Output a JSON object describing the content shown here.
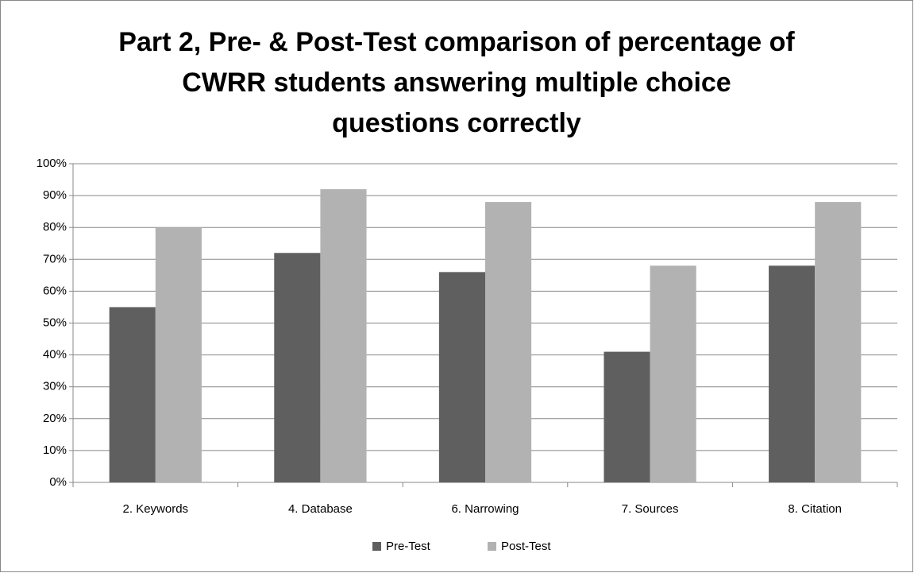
{
  "chart_data": {
    "type": "bar",
    "title": [
      "Part 2, Pre- & Post-Test comparison of percentage of",
      "CWRR students answering multiple choice",
      "questions correctly"
    ],
    "categories": [
      "2. Keywords",
      "4. Database",
      "6. Narrowing",
      "7. Sources",
      "8. Citation"
    ],
    "series": [
      {
        "name": "Pre-Test",
        "color": "#5f5f5f",
        "values": [
          55,
          72,
          66,
          41,
          68
        ]
      },
      {
        "name": "Post-Test",
        "color": "#b2b2b2",
        "values": [
          80,
          92,
          88,
          68,
          88
        ]
      }
    ],
    "ylim": [
      0,
      100
    ],
    "yticks": [
      {
        "value": 0,
        "label": "0%"
      },
      {
        "value": 10,
        "label": "10%"
      },
      {
        "value": 20,
        "label": "20%"
      },
      {
        "value": 30,
        "label": "30%"
      },
      {
        "value": 40,
        "label": "40%"
      },
      {
        "value": 50,
        "label": "50%"
      },
      {
        "value": 60,
        "label": "60%"
      },
      {
        "value": 70,
        "label": "70%"
      },
      {
        "value": 80,
        "label": "80%"
      },
      {
        "value": 90,
        "label": "90%"
      },
      {
        "value": 100,
        "label": "100%"
      }
    ],
    "grid": true,
    "legend": "bottom"
  }
}
